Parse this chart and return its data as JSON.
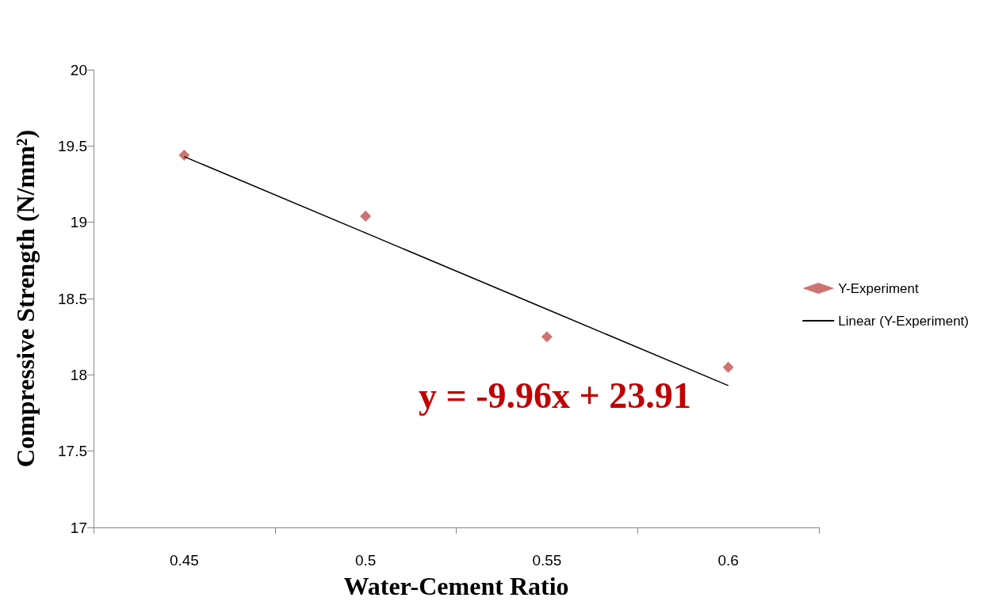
{
  "chart_data": {
    "type": "scatter",
    "xlabel": "Water-Cement Ratio",
    "ylabel": "Compressive Strength (N/mm²)",
    "categories": [
      "0.45",
      "0.5",
      "0.55",
      "0.6"
    ],
    "series": [
      {
        "name": "Y-Experiment",
        "color": "#c0504d",
        "marker": "diamond",
        "values": [
          19.44,
          19.04,
          18.25,
          18.05
        ]
      },
      {
        "name": "Linear (Y-Experiment)",
        "type": "line",
        "color": "#000000",
        "marker": "none",
        "values": [
          19.43,
          18.93,
          18.43,
          17.93
        ]
      }
    ],
    "ylim": [
      17,
      20
    ],
    "yticks": [
      17,
      17.5,
      18,
      18.5,
      19,
      19.5,
      20
    ],
    "annotations": [
      "y = -9.96x + 23.91"
    ],
    "grid": false,
    "legend": "right"
  }
}
